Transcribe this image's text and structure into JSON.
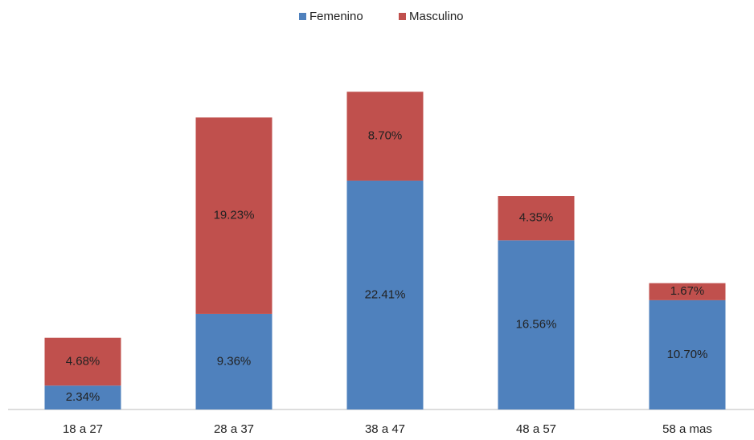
{
  "chart_data": {
    "type": "stacked_bar",
    "categories": [
      "18 a 27",
      "28 a 37",
      "38 a 47",
      "48 a 57",
      "58 a mas"
    ],
    "series": [
      {
        "name": "Femenino",
        "color": "#4f81bd",
        "values": [
          2.34,
          9.36,
          22.41,
          16.56,
          10.7
        ],
        "value_labels": [
          "2.34%",
          "9.36%",
          "22.41%",
          "16.56%",
          "10.70%"
        ]
      },
      {
        "name": "Masculino",
        "color": "#c0504d",
        "values": [
          4.68,
          19.23,
          8.7,
          4.35,
          1.67
        ],
        "value_labels": [
          "4.68%",
          "19.23%",
          "8.70%",
          "4.35%",
          "1.67%"
        ]
      }
    ],
    "legend": "top"
  }
}
